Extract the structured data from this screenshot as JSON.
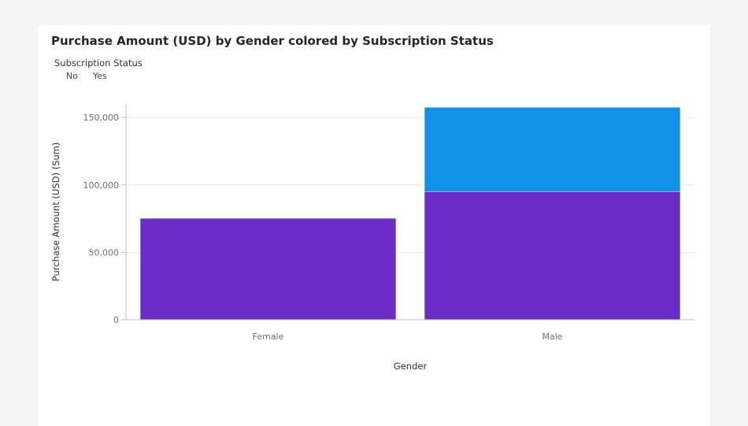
{
  "chart_data": {
    "type": "bar",
    "stacked": true,
    "title": "Purchase Amount (USD) by Gender colored by Subscription Status",
    "legend_title": "Subscription Status",
    "legend_position": "top-left",
    "xlabel": "Gender",
    "ylabel": "Purchase Amount (USD) (Sum)",
    "categories": [
      "Female",
      "Male"
    ],
    "series": [
      {
        "name": "No",
        "color": "#6a2bc6",
        "values": [
          75191,
          95000
        ]
      },
      {
        "name": "Yes",
        "color": "#1192e8",
        "values": [
          0,
          62500
        ]
      }
    ],
    "ylim": [
      0,
      160000
    ],
    "yticks": [
      0,
      50000,
      100000,
      150000
    ],
    "ytick_labels": [
      "0",
      "50,000",
      "100,000",
      "150,000"
    ],
    "grid": true
  }
}
